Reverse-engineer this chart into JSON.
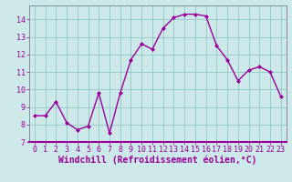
{
  "x": [
    0,
    1,
    2,
    3,
    4,
    5,
    6,
    7,
    8,
    9,
    10,
    11,
    12,
    13,
    14,
    15,
    16,
    17,
    18,
    19,
    20,
    21,
    22,
    23
  ],
  "y": [
    8.5,
    8.5,
    9.3,
    8.1,
    7.7,
    7.9,
    9.8,
    7.5,
    9.8,
    11.7,
    12.6,
    12.3,
    13.5,
    14.1,
    14.3,
    14.3,
    14.2,
    12.5,
    11.7,
    10.5,
    11.1,
    11.3,
    11.0,
    9.6
  ],
  "line_color": "#990099",
  "marker": "D",
  "marker_size": 2.5,
  "bg_color": "#cce8e8",
  "plot_bg_color": "#cce8e8",
  "grid_color": "#99cccc",
  "xlabel": "Windchill (Refroidissement éolien,°C)",
  "xlabel_color": "#990099",
  "xlabel_fontsize": 7.0,
  "ylim": [
    7,
    14.8
  ],
  "xlim": [
    -0.5,
    23.5
  ],
  "yticks": [
    7,
    8,
    9,
    10,
    11,
    12,
    13,
    14
  ],
  "xticks": [
    0,
    1,
    2,
    3,
    4,
    5,
    6,
    7,
    8,
    9,
    10,
    11,
    12,
    13,
    14,
    15,
    16,
    17,
    18,
    19,
    20,
    21,
    22,
    23
  ],
  "tick_fontsize": 6.0,
  "tick_color": "#990099",
  "spine_color": "#666688",
  "bottom_spine_color": "#990099",
  "linewidth": 1.0
}
